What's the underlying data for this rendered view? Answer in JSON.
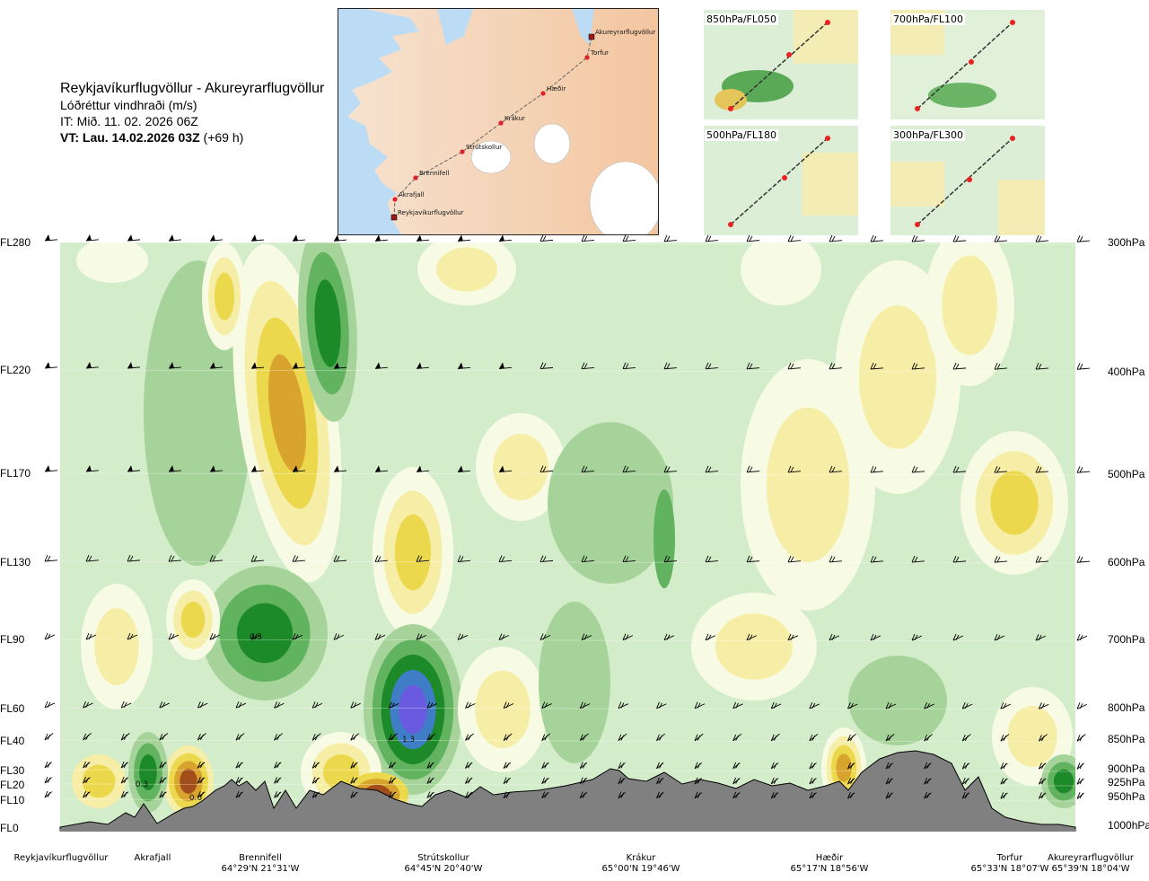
{
  "header": {
    "route": "Reykjavíkurflugvöllur - Akureyrarflugvöllur",
    "quantity": "Lóðréttur vindhraði (m/s)",
    "issue_time": "IT: Mið. 11. 02. 2026 06Z",
    "valid_time_bold": "VT: Lau. 14.02.2026 03Z",
    "valid_time_offset": "(+69 h)"
  },
  "route_map": {
    "points": [
      {
        "name": "Akureyrarflugvöllur",
        "kind": "airport"
      },
      {
        "name": "Torfur",
        "kind": "waypoint"
      },
      {
        "name": "Hæðir",
        "kind": "waypoint"
      },
      {
        "name": "Krákur",
        "kind": "waypoint"
      },
      {
        "name": "Strútskollur",
        "kind": "waypoint"
      },
      {
        "name": "Brennifell",
        "kind": "waypoint"
      },
      {
        "name": "Akrafjall",
        "kind": "waypoint"
      },
      {
        "name": "Reykjavíkurflugvöllur",
        "kind": "airport"
      }
    ]
  },
  "level_maps": [
    {
      "label": "850hPa/FL050"
    },
    {
      "label": "700hPa/FL100"
    },
    {
      "label": "500hPa/FL180"
    },
    {
      "label": "300hPa/FL300"
    }
  ],
  "flight_levels": [
    "FL280",
    "FL220",
    "FL170",
    "FL130",
    "FL90",
    "FL60",
    "FL40",
    "FL30",
    "FL20",
    "FL10",
    "FL0"
  ],
  "pressure_levels": [
    "300hPa",
    "400hPa",
    "500hPa",
    "600hPa",
    "700hPa",
    "800hPa",
    "850hPa",
    "900hPa",
    "925hPa",
    "950hPa",
    "1000hPa"
  ],
  "locations": [
    {
      "name": "Reykjavíkurflugvöllur",
      "coord": ""
    },
    {
      "name": "Akrafjall",
      "coord": ""
    },
    {
      "name": "Brennifell",
      "coord": "64°29'N 21°31'W"
    },
    {
      "name": "Strútskollur",
      "coord": "64°45'N 20°40'W"
    },
    {
      "name": "Krákur",
      "coord": "65°00'N 19°46'W"
    },
    {
      "name": "Hæðir",
      "coord": "65°17'N 18°56'W"
    },
    {
      "name": "Torfur",
      "coord": "65°33'N 18°07'W"
    },
    {
      "name": "Akureyrarflugvöllur",
      "coord": "65°39'N 18°04'W"
    }
  ],
  "chart_data": {
    "type": "heatmap",
    "title": "Lóðréttur vindhraði (m/s)",
    "x_axis": "route distance (waypoints)",
    "y_axis": "pressure level / flight level",
    "annotations": [
      {
        "text": "0.3",
        "at": "Akrafjall, ~FL20"
      },
      {
        "text": "0.6",
        "at": "Brennifell, ~FL20"
      },
      {
        "text": "0.5",
        "at": "between Brennifell and Strútskollur, ~FL90"
      },
      {
        "text": "1.3",
        "at": "Strútskollur, ~FL40"
      }
    ],
    "colors": {
      "strong_up": "#6a5ae0",
      "up_2": "#3f7ec7",
      "up_1": "#1d8a2a",
      "up_05": "#62b35f",
      "up_02": "#a6d39a",
      "weak": "#cfeac7",
      "near_zero": "#f8fbe4",
      "down_02": "#f6eda6",
      "down_05": "#ecd84c",
      "down_1": "#d9a42e",
      "strong_down": "#a24e1c",
      "terrain": "#808080"
    }
  }
}
